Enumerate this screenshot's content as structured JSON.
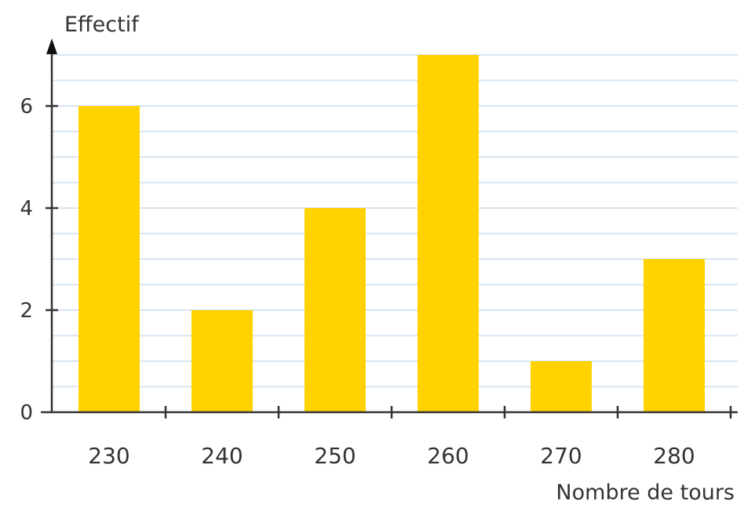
{
  "chart_data": {
    "type": "bar",
    "categories": [
      "230",
      "240",
      "250",
      "260",
      "270",
      "280"
    ],
    "values": [
      6,
      2,
      4,
      7,
      1,
      3
    ],
    "ylabel": "Effectif",
    "xlabel": "Nombre de tours",
    "ylim": [
      0,
      7
    ],
    "yticks": [
      0,
      2,
      4,
      6
    ],
    "grid": true,
    "bar_color": "#FFD200",
    "grid_color": "#D6E4F2",
    "axis_color": "#333333"
  }
}
